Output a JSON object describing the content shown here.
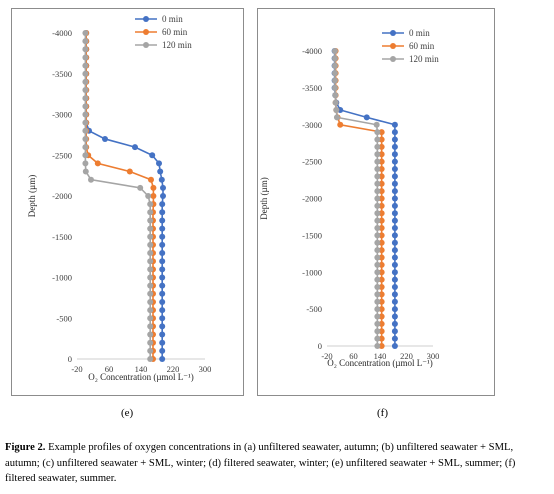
{
  "chart_data": [
    {
      "type": "scatter",
      "panel_label": "(e)",
      "xlabel": "O₂ Concentration (µmol L⁻¹)",
      "ylabel": "Depth (µm)",
      "xlim": [
        -20,
        300
      ],
      "xticks": [
        -20,
        60,
        140,
        220,
        300
      ],
      "ylim": [
        0,
        -4000
      ],
      "yticks": [
        0,
        -500,
        -1000,
        -1500,
        -2000,
        -2500,
        -3000,
        -3500,
        -4000
      ],
      "grid": false,
      "legend_position": "top-right",
      "series": [
        {
          "name": "0 min",
          "color": "#4472c4",
          "x": [
            193,
            193,
            193,
            193,
            193,
            193,
            193,
            193,
            193,
            193,
            193,
            193,
            193,
            193,
            193,
            193,
            193,
            193,
            193,
            193,
            195,
            195,
            192,
            188,
            185,
            168,
            125,
            50,
            10,
            3,
            3,
            3,
            3,
            3,
            3,
            3,
            3,
            3,
            3,
            3,
            3
          ],
          "y": [
            0,
            -100,
            -200,
            -300,
            -400,
            -500,
            -600,
            -700,
            -800,
            -900,
            -1000,
            -1100,
            -1200,
            -1300,
            -1400,
            -1500,
            -1600,
            -1700,
            -1800,
            -1900,
            -2000,
            -2100,
            -2200,
            -2300,
            -2400,
            -2500,
            -2600,
            -2700,
            -2800,
            -2900,
            -3000,
            -3100,
            -3200,
            -3300,
            -3400,
            -3500,
            -3600,
            -3700,
            -3800,
            -3900,
            -4000
          ]
        },
        {
          "name": "60 min",
          "color": "#ed7d31",
          "x": [
            170,
            170,
            170,
            170,
            170,
            170,
            170,
            170,
            170,
            170,
            170,
            170,
            170,
            170,
            170,
            170,
            170,
            170,
            170,
            171,
            171,
            171,
            165,
            112,
            32,
            8,
            3,
            3,
            3,
            3,
            3,
            3,
            3,
            3,
            3,
            3,
            3,
            3,
            3,
            3,
            3
          ],
          "y": [
            0,
            -100,
            -200,
            -300,
            -400,
            -500,
            -600,
            -700,
            -800,
            -900,
            -1000,
            -1100,
            -1200,
            -1300,
            -1400,
            -1500,
            -1600,
            -1700,
            -1800,
            -1900,
            -2000,
            -2100,
            -2200,
            -2300,
            -2400,
            -2500,
            -2600,
            -2700,
            -2800,
            -2900,
            -3000,
            -3100,
            -3200,
            -3300,
            -3400,
            -3500,
            -3600,
            -3700,
            -3800,
            -3900,
            -4000
          ]
        },
        {
          "name": "120 min",
          "color": "#a5a5a5",
          "x": [
            163,
            163,
            163,
            163,
            163,
            163,
            163,
            163,
            163,
            163,
            163,
            163,
            163,
            163,
            163,
            163,
            163,
            163,
            163,
            163,
            158,
            138,
            15,
            2,
            1,
            1,
            1,
            1,
            1,
            1,
            1,
            1,
            1,
            1,
            1,
            1,
            1,
            1,
            1,
            1,
            1
          ],
          "y": [
            0,
            -100,
            -200,
            -300,
            -400,
            -500,
            -600,
            -700,
            -800,
            -900,
            -1000,
            -1100,
            -1200,
            -1300,
            -1400,
            -1500,
            -1600,
            -1700,
            -1800,
            -1900,
            -2000,
            -2100,
            -2200,
            -2300,
            -2400,
            -2500,
            -2600,
            -2700,
            -2800,
            -2900,
            -3000,
            -3100,
            -3200,
            -3300,
            -3400,
            -3500,
            -3600,
            -3700,
            -3800,
            -3900,
            -4000
          ]
        }
      ]
    },
    {
      "type": "scatter",
      "panel_label": "(f)",
      "xlabel": "O₂ Concentration (µmol L⁻¹)",
      "ylabel": "Depth (µm)",
      "xlim": [
        -20,
        300
      ],
      "xticks": [
        -20,
        60,
        140,
        220,
        300
      ],
      "ylim": [
        0,
        -4000
      ],
      "yticks": [
        0,
        -500,
        -1000,
        -1500,
        -2000,
        -2500,
        -3000,
        -3500,
        -4000
      ],
      "grid": false,
      "legend_position": "top-right",
      "series": [
        {
          "name": "0 min",
          "color": "#4472c4",
          "x": [
            185,
            185,
            185,
            185,
            185,
            185,
            185,
            185,
            185,
            185,
            185,
            185,
            185,
            185,
            185,
            185,
            185,
            185,
            185,
            185,
            185,
            185,
            185,
            185,
            185,
            185,
            185,
            185,
            185,
            185,
            185,
            100,
            20,
            8,
            5,
            3,
            3,
            3,
            3,
            3,
            3
          ],
          "y": [
            0,
            -100,
            -200,
            -300,
            -400,
            -500,
            -600,
            -700,
            -800,
            -900,
            -1000,
            -1100,
            -1200,
            -1300,
            -1400,
            -1500,
            -1600,
            -1700,
            -1800,
            -1900,
            -2000,
            -2100,
            -2200,
            -2300,
            -2400,
            -2500,
            -2600,
            -2700,
            -2800,
            -2900,
            -3000,
            -3100,
            -3200,
            -3300,
            -3400,
            -3500,
            -3600,
            -3700,
            -3800,
            -3900,
            -4000
          ]
        },
        {
          "name": "60 min",
          "color": "#ed7d31",
          "x": [
            145,
            145,
            145,
            145,
            145,
            145,
            145,
            145,
            145,
            145,
            145,
            145,
            145,
            145,
            145,
            145,
            145,
            145,
            145,
            145,
            145,
            145,
            145,
            145,
            145,
            145,
            145,
            145,
            145,
            145,
            20,
            12,
            8,
            6,
            6,
            6,
            6,
            6,
            6,
            6,
            6
          ],
          "y": [
            0,
            -100,
            -200,
            -300,
            -400,
            -500,
            -600,
            -700,
            -800,
            -900,
            -1000,
            -1100,
            -1200,
            -1300,
            -1400,
            -1500,
            -1600,
            -1700,
            -1800,
            -1900,
            -2000,
            -2100,
            -2200,
            -2300,
            -2400,
            -2500,
            -2600,
            -2700,
            -2800,
            -2900,
            -3000,
            -3100,
            -3200,
            -3300,
            -3400,
            -3500,
            -3600,
            -3700,
            -3800,
            -3900,
            -4000
          ]
        },
        {
          "name": "120 min",
          "color": "#a5a5a5",
          "x": [
            132,
            132,
            132,
            132,
            132,
            132,
            132,
            132,
            132,
            132,
            132,
            132,
            132,
            132,
            132,
            132,
            132,
            132,
            132,
            132,
            132,
            132,
            132,
            132,
            132,
            132,
            132,
            132,
            132,
            132,
            130,
            10,
            8,
            6,
            5,
            4,
            4,
            4,
            4,
            4,
            4
          ],
          "y": [
            0,
            -100,
            -200,
            -300,
            -400,
            -500,
            -600,
            -700,
            -800,
            -900,
            -1000,
            -1100,
            -1200,
            -1300,
            -1400,
            -1500,
            -1600,
            -1700,
            -1800,
            -1900,
            -2000,
            -2100,
            -2200,
            -2300,
            -2400,
            -2500,
            -2600,
            -2700,
            -2800,
            -2900,
            -3000,
            -3100,
            -3200,
            -3300,
            -3400,
            -3500,
            -3600,
            -3700,
            -3800,
            -3900,
            -4000
          ]
        }
      ]
    }
  ],
  "caption": {
    "lead": "Figure 2.",
    "text": " Example profiles of oxygen concentrations in (a) unfiltered seawater, autumn; (b) unfiltered seawater + SML, autumn; (c) unfiltered seawater + SML, winter; (d) filtered seawater, winter; (e) unfiltered seawater + SML, summer; (f) filtered seawater, summer."
  }
}
